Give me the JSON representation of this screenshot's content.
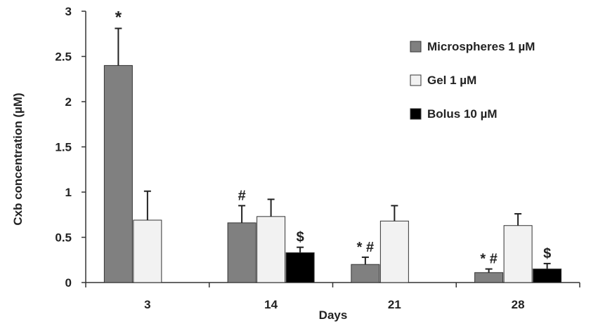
{
  "chart_data": {
    "type": "bar",
    "title": "",
    "xlabel": "Days",
    "ylabel": "Cxb concentration (µM)",
    "ylim": [
      0,
      3
    ],
    "yticks": [
      "0",
      "0.5",
      "1",
      "1.5",
      "2",
      "2.5",
      "3"
    ],
    "categories": [
      "3",
      "14",
      "21",
      "28"
    ],
    "legend_position": "top-right",
    "grid": false,
    "series": [
      {
        "name": "Microspheres 1 µM",
        "color": "#808080",
        "values": [
          2.4,
          0.66,
          0.2,
          0.11
        ],
        "errors": [
          0.41,
          0.19,
          0.08,
          0.04
        ],
        "annotations": [
          "*",
          "#",
          "* #",
          "* #"
        ]
      },
      {
        "name": "Gel 1 µM",
        "color": "#f2f2f2",
        "values": [
          0.69,
          0.73,
          0.68,
          0.63
        ],
        "errors": [
          0.32,
          0.19,
          0.17,
          0.13
        ],
        "annotations": [
          "",
          "",
          "",
          ""
        ]
      },
      {
        "name": "Bolus 10 µM",
        "color": "#000000",
        "values": [
          null,
          0.33,
          null,
          0.15
        ],
        "errors": [
          null,
          0.06,
          null,
          0.06
        ],
        "annotations": [
          "",
          "$",
          "",
          "$"
        ]
      }
    ]
  }
}
